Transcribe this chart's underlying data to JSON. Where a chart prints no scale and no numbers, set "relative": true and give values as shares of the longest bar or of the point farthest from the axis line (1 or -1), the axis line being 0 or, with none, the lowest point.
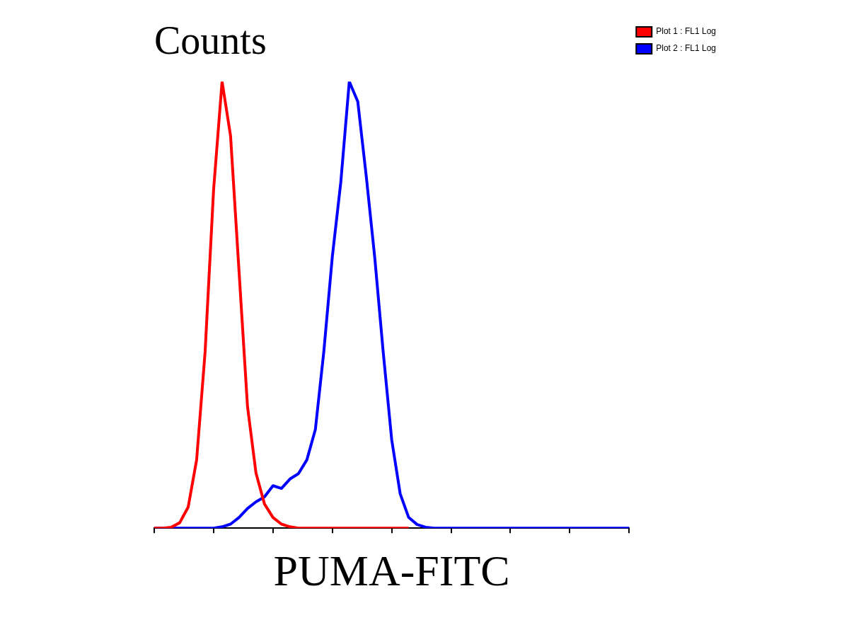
{
  "chart_data": {
    "type": "line",
    "title": "Counts",
    "xlabel": "PUMA-FITC",
    "relative": true,
    "legend": "top right",
    "categories": [
      null,
      null,
      null,
      null,
      null,
      null,
      null,
      null,
      null,
      null,
      null,
      null,
      null,
      null,
      null,
      null,
      null,
      null,
      null,
      null,
      null,
      null,
      null,
      null,
      null,
      null,
      null,
      null,
      null,
      null,
      null,
      null,
      null,
      null,
      null,
      null,
      null,
      null,
      null,
      null,
      null,
      null,
      null,
      null,
      null,
      null,
      null,
      null,
      null,
      null,
      null,
      null,
      null,
      null,
      null,
      null,
      null
    ],
    "series": [
      {
        "name": "Plot 1 : FL1 Log",
        "color": "#ff0000",
        "values": [
          0,
          0,
          0.002,
          0.012,
          0.047,
          0.153,
          0.395,
          0.758,
          1,
          0.878,
          0.575,
          0.272,
          0.123,
          0.054,
          0.024,
          0.009,
          0.003,
          0,
          0,
          0,
          0,
          0,
          0,
          0,
          0,
          0,
          0,
          0,
          0,
          0,
          0,
          null,
          null,
          null,
          null,
          null,
          null,
          null,
          null,
          null,
          null,
          null,
          null,
          null,
          null,
          null,
          null,
          null,
          null,
          null,
          null,
          null,
          null,
          null,
          null,
          null,
          null
        ]
      },
      {
        "name": "Plot 2 : FL1 Log",
        "color": "#0000ff",
        "values": [
          0,
          0,
          0,
          0,
          0,
          0,
          0,
          0,
          0.003,
          0.009,
          0.024,
          0.044,
          0.059,
          0.07,
          0.095,
          0.089,
          0.11,
          0.122,
          0.153,
          0.221,
          0.396,
          0.608,
          0.775,
          1,
          0.955,
          0.788,
          0.606,
          0.394,
          0.198,
          0.077,
          0.024,
          0.008,
          0.002,
          0,
          0,
          0,
          0,
          0,
          0,
          0,
          0,
          0,
          0,
          0,
          0,
          0,
          0,
          0,
          0,
          0,
          0,
          0,
          0,
          0,
          0,
          0,
          0
        ]
      }
    ]
  }
}
